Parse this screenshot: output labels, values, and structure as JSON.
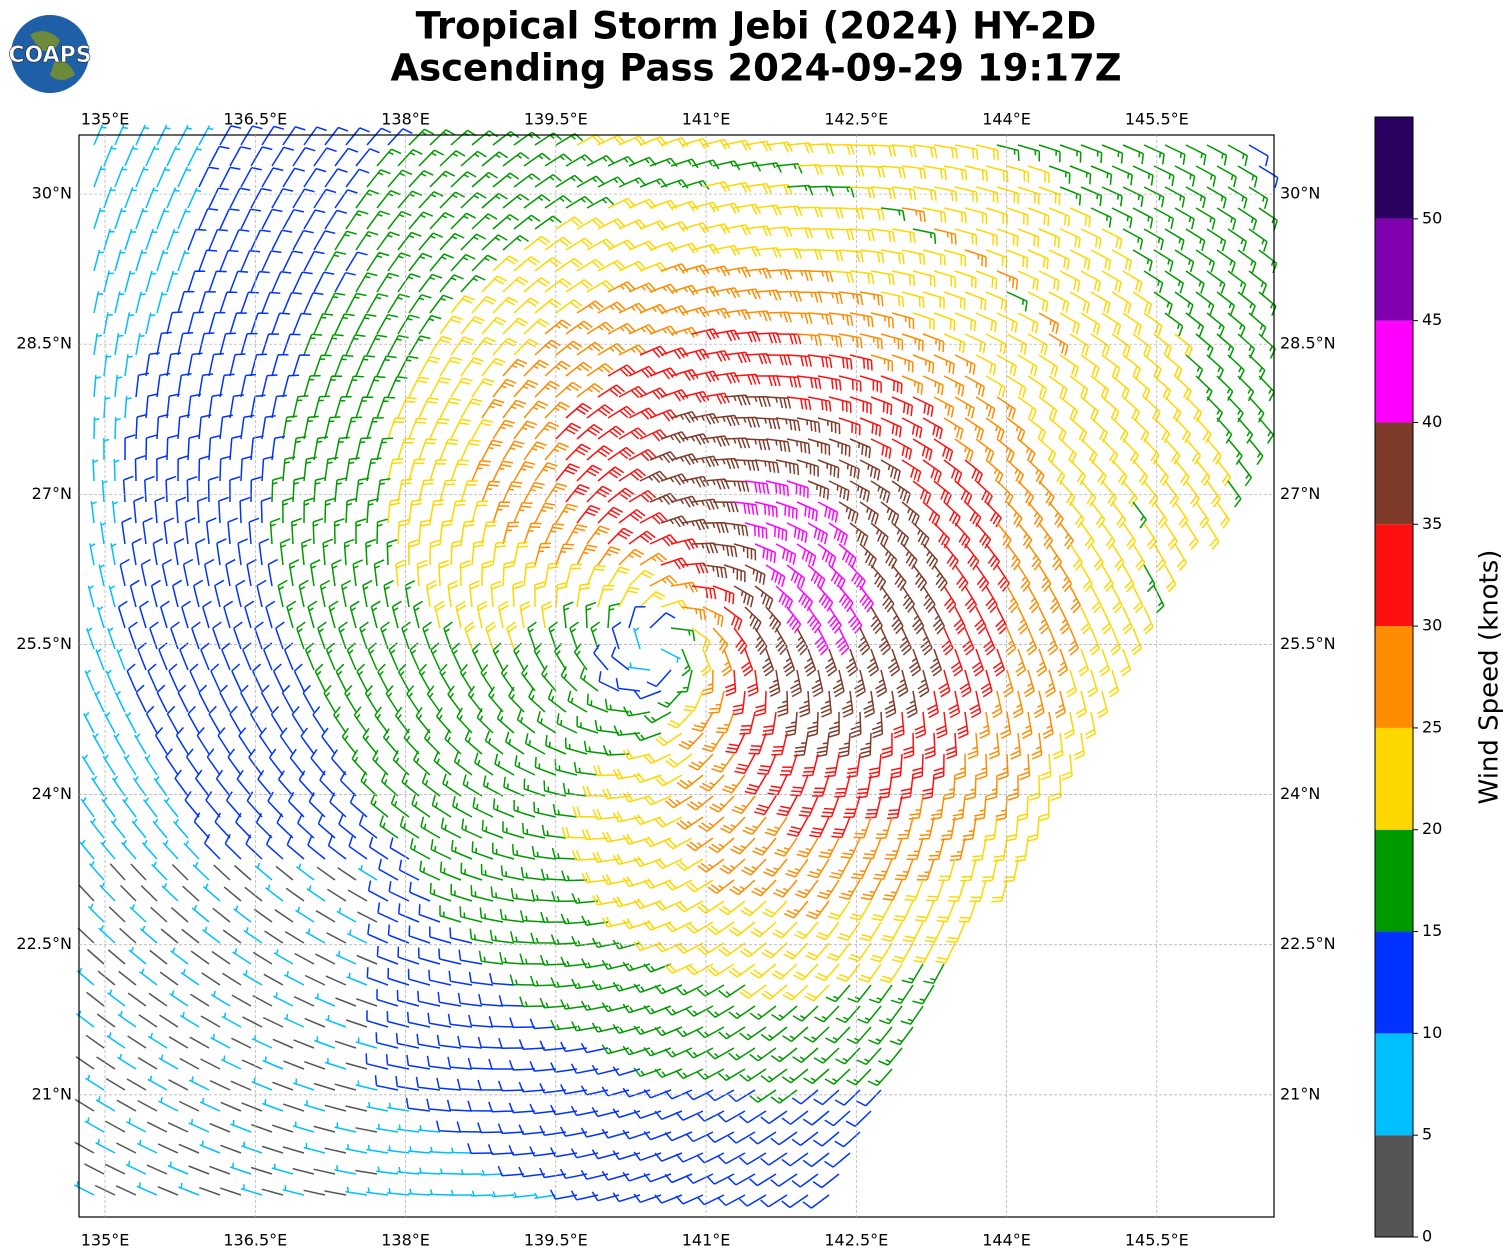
{
  "logo_text": "COAPS",
  "chart_data": {
    "type": "barbs",
    "title": "Tropical Storm Jebi (2024) HY-2D",
    "subtitle": "Ascending Pass 2024-09-29 19:17Z",
    "xlim": [
      134.74,
      146.67
    ],
    "ylim": [
      19.78,
      30.59
    ],
    "xticks": [
      {
        "value": 135,
        "label": "135°E"
      },
      {
        "value": 136.5,
        "label": "136.5°E"
      },
      {
        "value": 138,
        "label": "138°E"
      },
      {
        "value": 139.5,
        "label": "139.5°E"
      },
      {
        "value": 141,
        "label": "141°E"
      },
      {
        "value": 142.5,
        "label": "142.5°E"
      },
      {
        "value": 144,
        "label": "144°E"
      },
      {
        "value": 145.5,
        "label": "145.5°E"
      }
    ],
    "yticks": [
      {
        "value": 21,
        "label": "21°N"
      },
      {
        "value": 22.5,
        "label": "22.5°N"
      },
      {
        "value": 24,
        "label": "24°N"
      },
      {
        "value": 25.5,
        "label": "25.5°N"
      },
      {
        "value": 27,
        "label": "27°N"
      },
      {
        "value": 28.5,
        "label": "28.5°N"
      },
      {
        "value": 30,
        "label": "30°N"
      }
    ],
    "grid": true,
    "colorbar": {
      "label": "Wind Speed (knots)",
      "lim": [
        0,
        55
      ],
      "bounds": [
        0,
        5,
        10,
        15,
        20,
        25,
        30,
        35,
        40,
        45,
        50,
        55
      ],
      "colors": [
        "#555555",
        "#00bfff",
        "#0033ff",
        "#009900",
        "#ffd700",
        "#ff8c00",
        "#ff1010",
        "#7f3b2a",
        "#ff00ff",
        "#8000b0",
        "#2a0060"
      ],
      "ticks": [
        0,
        5,
        10,
        15,
        20,
        25,
        30,
        35,
        40,
        45,
        50
      ]
    }
  }
}
